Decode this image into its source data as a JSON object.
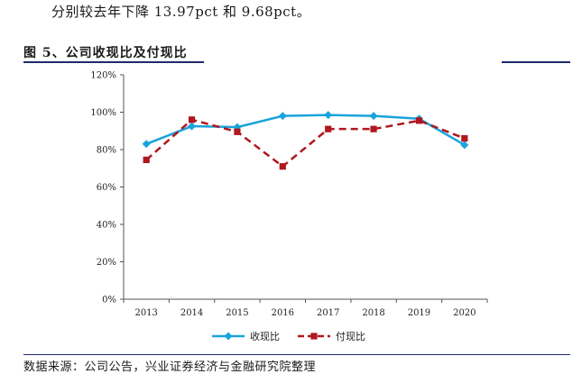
{
  "header_text": "分别较去年下降 13.97pct 和 9.68pct。",
  "figure_title": "图 5、公司收现比及付现比",
  "source_note": "数据来源：公司公告，兴业证券经济与金融研究院整理",
  "chart_data": {
    "type": "line",
    "title": "图 5、公司收现比及付现比",
    "categories": [
      "2013",
      "2014",
      "2015",
      "2016",
      "2017",
      "2018",
      "2019",
      "2020"
    ],
    "yticks": [
      "0%",
      "20%",
      "40%",
      "60%",
      "80%",
      "100%",
      "120%"
    ],
    "ylim": [
      0,
      120
    ],
    "series": [
      {
        "name": "收现比",
        "values": [
          83,
          92.5,
          92,
          98,
          98.5,
          98,
          96.5,
          82.5
        ],
        "color": "#1aa3dc",
        "marker": "diamond",
        "style": "solid"
      },
      {
        "name": "付现比",
        "values": [
          74.5,
          96,
          89.5,
          71,
          91,
          91,
          95.5,
          86
        ],
        "color": "#b0171e",
        "marker": "square",
        "style": "dashed"
      }
    ],
    "legend_position": "bottom",
    "grid": false
  }
}
